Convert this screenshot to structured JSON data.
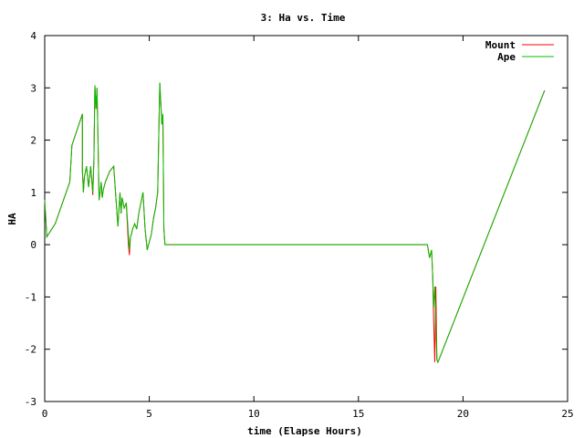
{
  "chart_data": {
    "type": "line",
    "title": "3: Ha vs. Time",
    "xlabel": "time (Elapse Hours)",
    "ylabel": "HA",
    "xlim": [
      0,
      25
    ],
    "ylim": [
      -3,
      4
    ],
    "xticks": [
      "0",
      "5",
      "10",
      "15",
      "20",
      "25"
    ],
    "yticks": [
      "-3",
      "-2",
      "-1",
      "0",
      "1",
      "2",
      "3",
      "4"
    ],
    "grid": false,
    "legend_position": "top-right",
    "series": [
      {
        "name": "Mount",
        "color": "#ff0000",
        "x": [
          0,
          0.1,
          0.5,
          1.2,
          1.3,
          1.8,
          1.8,
          1.85,
          1.9,
          1.95,
          2.0,
          2.1,
          2.2,
          2.3,
          2.35,
          2.4,
          2.45,
          2.5,
          2.55,
          2.6,
          2.65,
          2.7,
          2.75,
          2.8,
          2.9,
          3.1,
          3.3,
          3.5,
          3.6,
          3.65,
          3.7,
          3.8,
          3.9,
          4.0,
          4.05,
          4.1,
          4.15,
          4.2,
          4.3,
          4.4,
          4.5,
          4.6,
          4.7,
          4.8,
          4.9,
          5.0,
          5.1,
          5.2,
          5.3,
          5.4,
          5.5,
          5.6,
          5.65,
          5.7,
          5.75,
          5.8,
          5.85,
          5.9,
          18.3,
          18.4,
          18.5,
          18.55,
          18.6,
          18.65,
          18.7,
          18.75,
          18.8,
          23.9
        ],
        "values": [
          0.85,
          0.15,
          0.4,
          1.2,
          1.9,
          2.5,
          1.4,
          1.0,
          1.3,
          1.4,
          1.5,
          1.1,
          1.5,
          0.95,
          1.6,
          3.05,
          2.6,
          3.0,
          2.0,
          0.85,
          1.0,
          1.2,
          0.9,
          1.05,
          1.2,
          1.4,
          1.5,
          0.35,
          1.0,
          0.6,
          0.9,
          0.7,
          0.8,
          0.0,
          -0.2,
          0.15,
          0.2,
          0.3,
          0.4,
          0.3,
          0.6,
          0.8,
          1.0,
          0.3,
          -0.1,
          0.05,
          0.2,
          0.5,
          0.7,
          1.0,
          3.1,
          2.3,
          2.5,
          0.3,
          0.0,
          0.0,
          0.0,
          0.0,
          0.0,
          -0.25,
          -0.1,
          -0.6,
          -1.5,
          -2.25,
          -0.8,
          -2.2,
          -2.25,
          2.95
        ]
      },
      {
        "name": "Ape",
        "color": "#00c000",
        "x": [
          0,
          0.1,
          0.5,
          1.2,
          1.3,
          1.8,
          1.8,
          1.85,
          1.9,
          1.95,
          2.0,
          2.1,
          2.2,
          2.3,
          2.35,
          2.4,
          2.45,
          2.5,
          2.55,
          2.6,
          2.65,
          2.7,
          2.75,
          2.8,
          2.9,
          3.1,
          3.3,
          3.5,
          3.6,
          3.65,
          3.7,
          3.8,
          3.9,
          4.0,
          4.05,
          4.1,
          4.15,
          4.2,
          4.3,
          4.4,
          4.5,
          4.6,
          4.7,
          4.8,
          4.9,
          5.0,
          5.1,
          5.2,
          5.3,
          5.4,
          5.5,
          5.6,
          5.65,
          5.7,
          5.75,
          5.8,
          5.85,
          5.9,
          18.3,
          18.4,
          18.5,
          18.55,
          18.6,
          18.65,
          18.7,
          18.75,
          18.8,
          23.9
        ],
        "values": [
          0.85,
          0.15,
          0.4,
          1.2,
          1.9,
          2.5,
          1.4,
          1.0,
          1.3,
          1.4,
          1.5,
          1.1,
          1.5,
          1.0,
          1.6,
          3.05,
          2.6,
          3.0,
          2.0,
          0.85,
          1.0,
          1.2,
          0.9,
          1.05,
          1.2,
          1.4,
          1.5,
          0.35,
          1.0,
          0.6,
          0.9,
          0.7,
          0.8,
          0.2,
          -0.1,
          0.15,
          0.2,
          0.3,
          0.4,
          0.3,
          0.6,
          0.8,
          1.0,
          0.3,
          -0.1,
          0.05,
          0.2,
          0.5,
          0.7,
          1.0,
          3.1,
          2.3,
          2.5,
          0.3,
          0.0,
          0.0,
          0.0,
          0.0,
          0.0,
          -0.25,
          -0.1,
          -0.6,
          -1.2,
          -0.8,
          -1.5,
          -2.2,
          -2.25,
          2.95
        ]
      }
    ]
  }
}
